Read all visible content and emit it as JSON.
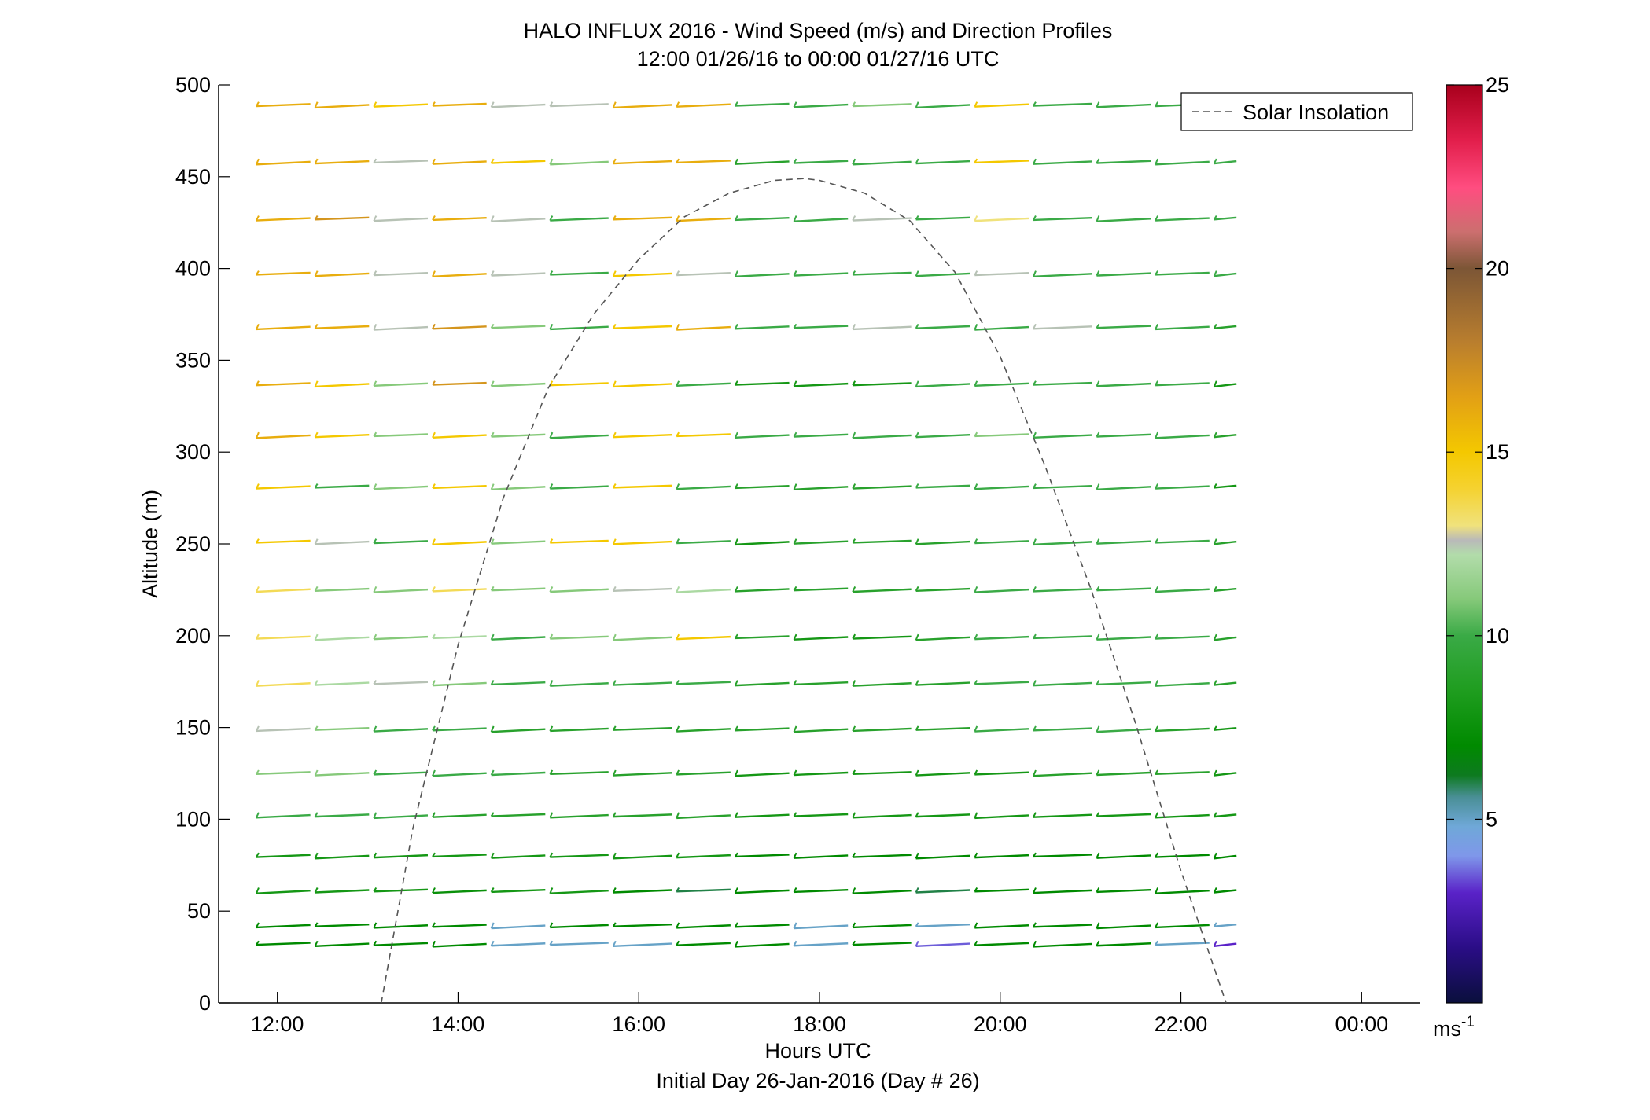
{
  "chart_data": {
    "type": "line",
    "title": "HALO INFLUX 2016 - Wind Speed (m/s) and Direction Profiles",
    "subtitle": "12:00 01/26/16 to 00:00 01/27/16  UTC",
    "xlabel": "Hours UTC",
    "xlabel2": "Initial Day 26-Jan-2016 (Day # 26)",
    "ylabel": "Altitude (m)",
    "x_ticks": [
      12,
      14,
      16,
      18,
      20,
      22,
      24
    ],
    "x_tick_labels": [
      "12:00",
      "14:00",
      "16:00",
      "18:00",
      "20:00",
      "22:00",
      "00:00"
    ],
    "xlim": [
      11.35,
      24.65
    ],
    "y_ticks": [
      0,
      50,
      100,
      150,
      200,
      250,
      300,
      350,
      400,
      450,
      500
    ],
    "y_tick_labels": [
      "0",
      "50",
      "100",
      "150",
      "200",
      "250",
      "300",
      "350",
      "400",
      "450",
      "500"
    ],
    "ylim": [
      0,
      500
    ],
    "grid": false,
    "legend": {
      "placement": "top-right",
      "entries": [
        "Solar Insolation"
      ]
    },
    "colorbar": {
      "min": 0,
      "max": 25,
      "ticks": [
        5,
        10,
        15,
        20,
        25
      ],
      "tick_labels": [
        "5",
        "10",
        "15",
        "20",
        "25"
      ],
      "unit_label": "ms",
      "unit_exp": "-1"
    },
    "solar_insolation": {
      "name": "Solar Insolation",
      "style": "dashed",
      "color": "#555555",
      "x": [
        13.15,
        13.5,
        14.0,
        14.5,
        15.0,
        15.5,
        16.0,
        16.5,
        17.0,
        17.5,
        17.83,
        18.0,
        18.5,
        19.0,
        19.5,
        20.0,
        20.5,
        21.0,
        21.5,
        22.0,
        22.5
      ],
      "y": [
        0,
        95,
        195,
        275,
        335,
        375,
        405,
        428,
        441,
        448,
        449,
        448,
        441,
        426,
        398,
        352,
        292,
        226,
        152,
        72,
        0
      ]
    },
    "wind_barb_altitudes": [
      32,
      42,
      61,
      80,
      102,
      125,
      149,
      174,
      199,
      225,
      251,
      281,
      309,
      337,
      368,
      397,
      427,
      458,
      489
    ],
    "wind_barb_times": [
      11.75,
      12.4,
      13.05,
      13.7,
      14.35,
      15.0,
      15.7,
      16.4,
      17.05,
      17.7,
      18.35,
      19.05,
      19.7,
      20.35,
      21.05,
      21.7,
      22.35
    ],
    "wind_barb_end_time": 22.65,
    "wind_speed_ms": [
      [
        7,
        7,
        7,
        7,
        5,
        5,
        5,
        7,
        7,
        5,
        7,
        3.5,
        7,
        7,
        7,
        5,
        3
      ],
      [
        7,
        7,
        7,
        7,
        5,
        7,
        7,
        7,
        7,
        5,
        7,
        5,
        7,
        7,
        7,
        7,
        5
      ],
      [
        8,
        8,
        8,
        7.5,
        8,
        8,
        7,
        6,
        7,
        7,
        7,
        6,
        7,
        7,
        7,
        7,
        7
      ],
      [
        8,
        8,
        8,
        8,
        8,
        8,
        8,
        8,
        7,
        7,
        7,
        7,
        7,
        7,
        7,
        7,
        7
      ],
      [
        10,
        10,
        10,
        9,
        9,
        9,
        9,
        9,
        8,
        8,
        8,
        8,
        8,
        8,
        8,
        8,
        8
      ],
      [
        11,
        11,
        10,
        10,
        10,
        9,
        9,
        9,
        8,
        8,
        8,
        8,
        8,
        9,
        9,
        9,
        8
      ],
      [
        12.5,
        11,
        10,
        10,
        9,
        9,
        9,
        9,
        9,
        9,
        9,
        9,
        10,
        10,
        10,
        9,
        8
      ],
      [
        13.5,
        12,
        12.5,
        11,
        10,
        10,
        10,
        10,
        9,
        9,
        9,
        9,
        10,
        10,
        10,
        10,
        9
      ],
      [
        13.5,
        12,
        11,
        12,
        10,
        11,
        11,
        15,
        9,
        8,
        8,
        9,
        10,
        10,
        10,
        10,
        9
      ],
      [
        13.5,
        11,
        11,
        13.5,
        11,
        11,
        12.5,
        12,
        9,
        9,
        9,
        9,
        10,
        10,
        10,
        10,
        9
      ],
      [
        15,
        12.5,
        10,
        15,
        11,
        15,
        15,
        10,
        8,
        9,
        9,
        9,
        10,
        10,
        10,
        10,
        9
      ],
      [
        15,
        10,
        11,
        15,
        11,
        10,
        15,
        10,
        9,
        9,
        9,
        10,
        10,
        10,
        10,
        10,
        8
      ],
      [
        16,
        15,
        11,
        15,
        11,
        10,
        15,
        15,
        10,
        10,
        10,
        10,
        11,
        10,
        10,
        10,
        9
      ],
      [
        16,
        15,
        11,
        17,
        11,
        15,
        15,
        10,
        8,
        8,
        8,
        10,
        10,
        10,
        10,
        10,
        8
      ],
      [
        16,
        16,
        12.5,
        17,
        11,
        10,
        15,
        16,
        10,
        10,
        12.5,
        10,
        10,
        12.5,
        10,
        10,
        9
      ],
      [
        16,
        16,
        12.5,
        16,
        12.5,
        10,
        15,
        12.5,
        10,
        10,
        10,
        10,
        12.5,
        10,
        10,
        10,
        10
      ],
      [
        16,
        17,
        12.5,
        16,
        12.5,
        10,
        16,
        16,
        10,
        10,
        12.5,
        10,
        13,
        10,
        10,
        10,
        10
      ],
      [
        16,
        16,
        12.5,
        16,
        15,
        11,
        16,
        16,
        9,
        10,
        10,
        10,
        15,
        10,
        10,
        10,
        10
      ],
      [
        16,
        16,
        15,
        16,
        12.5,
        12.5,
        16,
        16,
        10,
        10,
        11,
        10,
        15,
        10,
        10,
        10,
        10
      ]
    ]
  }
}
